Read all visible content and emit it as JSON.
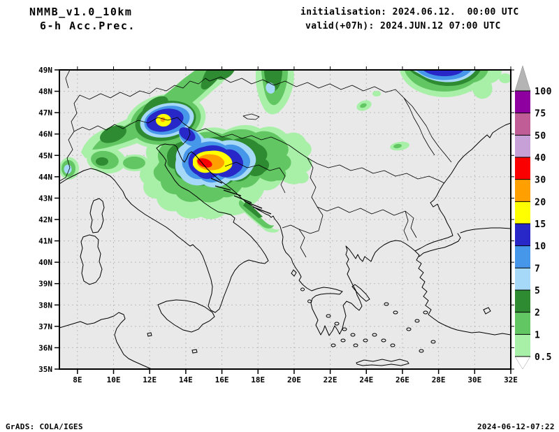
{
  "header": {
    "model": "NMMB_v1.0_10km",
    "product": "6-h Acc.Prec.",
    "init": "initialisation: 2024.06.12.  00:00 UTC",
    "valid": "valid(+07h): 2024.JUN.12 07:00 UTC"
  },
  "footer": {
    "left": "GrADS: COLA/IGES",
    "right": "2024-06-12-07:22"
  },
  "axes": {
    "lat_labels": [
      "49N",
      "48N",
      "47N",
      "46N",
      "45N",
      "44N",
      "43N",
      "42N",
      "41N",
      "40N",
      "39N",
      "38N",
      "37N",
      "36N",
      "35N"
    ],
    "lon_labels": [
      "8E",
      "10E",
      "12E",
      "14E",
      "16E",
      "18E",
      "20E",
      "22E",
      "24E",
      "26E",
      "28E",
      "30E",
      "32E"
    ]
  },
  "colorbar": {
    "labels_top_to_bottom": [
      "100",
      "75",
      "50",
      "40",
      "30",
      "20",
      "15",
      "10",
      "7",
      "5",
      "2",
      "1",
      "0.5"
    ],
    "colors_top_to_bottom": [
      "#8e00a0",
      "#c05c96",
      "#c8a0d8",
      "#fa0000",
      "#ffa000",
      "#ffff00",
      "#2828c8",
      "#4697e9",
      "#a6d9f7",
      "#2e8b32",
      "#62c662",
      "#a8f0a8"
    ],
    "over_color": "#b4b4b4",
    "under_color": "#ffffff"
  },
  "map_colors": {
    "background": "#e9e9e9",
    "grid": "#bcbcbc",
    "coast": "#000000"
  },
  "chart_data": {
    "type": "heatmap",
    "title": "NMMB_v1.0_10km 6-h Acc.Prec.",
    "init_time": "2024.06.12. 00:00 UTC",
    "valid_time": "2024.JUN.12 07:00 UTC (+07h)",
    "region": {
      "lon_min_e": 7,
      "lon_max_e": 32,
      "lat_min_n": 35,
      "lat_max_n": 49
    },
    "contour_levels": [
      0.5,
      1,
      2,
      5,
      7,
      10,
      15,
      20,
      30,
      40,
      50,
      75,
      100
    ],
    "legend_position": "right",
    "grid": "dashed 1deg lat x 2deg lon",
    "maxima": [
      {
        "name": "north-adriatic-croatia",
        "lon_e": 15.0,
        "lat_n": 44.6,
        "peak_band": "30-40"
      },
      {
        "name": "eastern-alps",
        "lon_e": 12.7,
        "lat_n": 46.6,
        "peak_band": "20-30"
      },
      {
        "name": "northeast-top-edge",
        "lon_e": 27.5,
        "lat_n": 49.0,
        "peak_band": "10-15"
      },
      {
        "name": "west-carpathia-patch",
        "lon_e": 18.6,
        "lat_n": 48.2,
        "peak_band": "5-7"
      },
      {
        "name": "piedmont-west-alps-spot",
        "lon_e": 7.5,
        "lat_n": 44.3,
        "peak_band": "5-7"
      },
      {
        "name": "alpine-band",
        "lon_e": 11.0,
        "lat_n": 46.3,
        "peak_band": "2-5"
      },
      {
        "name": "transylvania-fleck",
        "lon_e": 23.8,
        "lat_n": 47.4,
        "peak_band": "1-2"
      },
      {
        "name": "south-carpathia-fleck",
        "lon_e": 25.8,
        "lat_n": 45.5,
        "peak_band": "1-2"
      }
    ]
  }
}
